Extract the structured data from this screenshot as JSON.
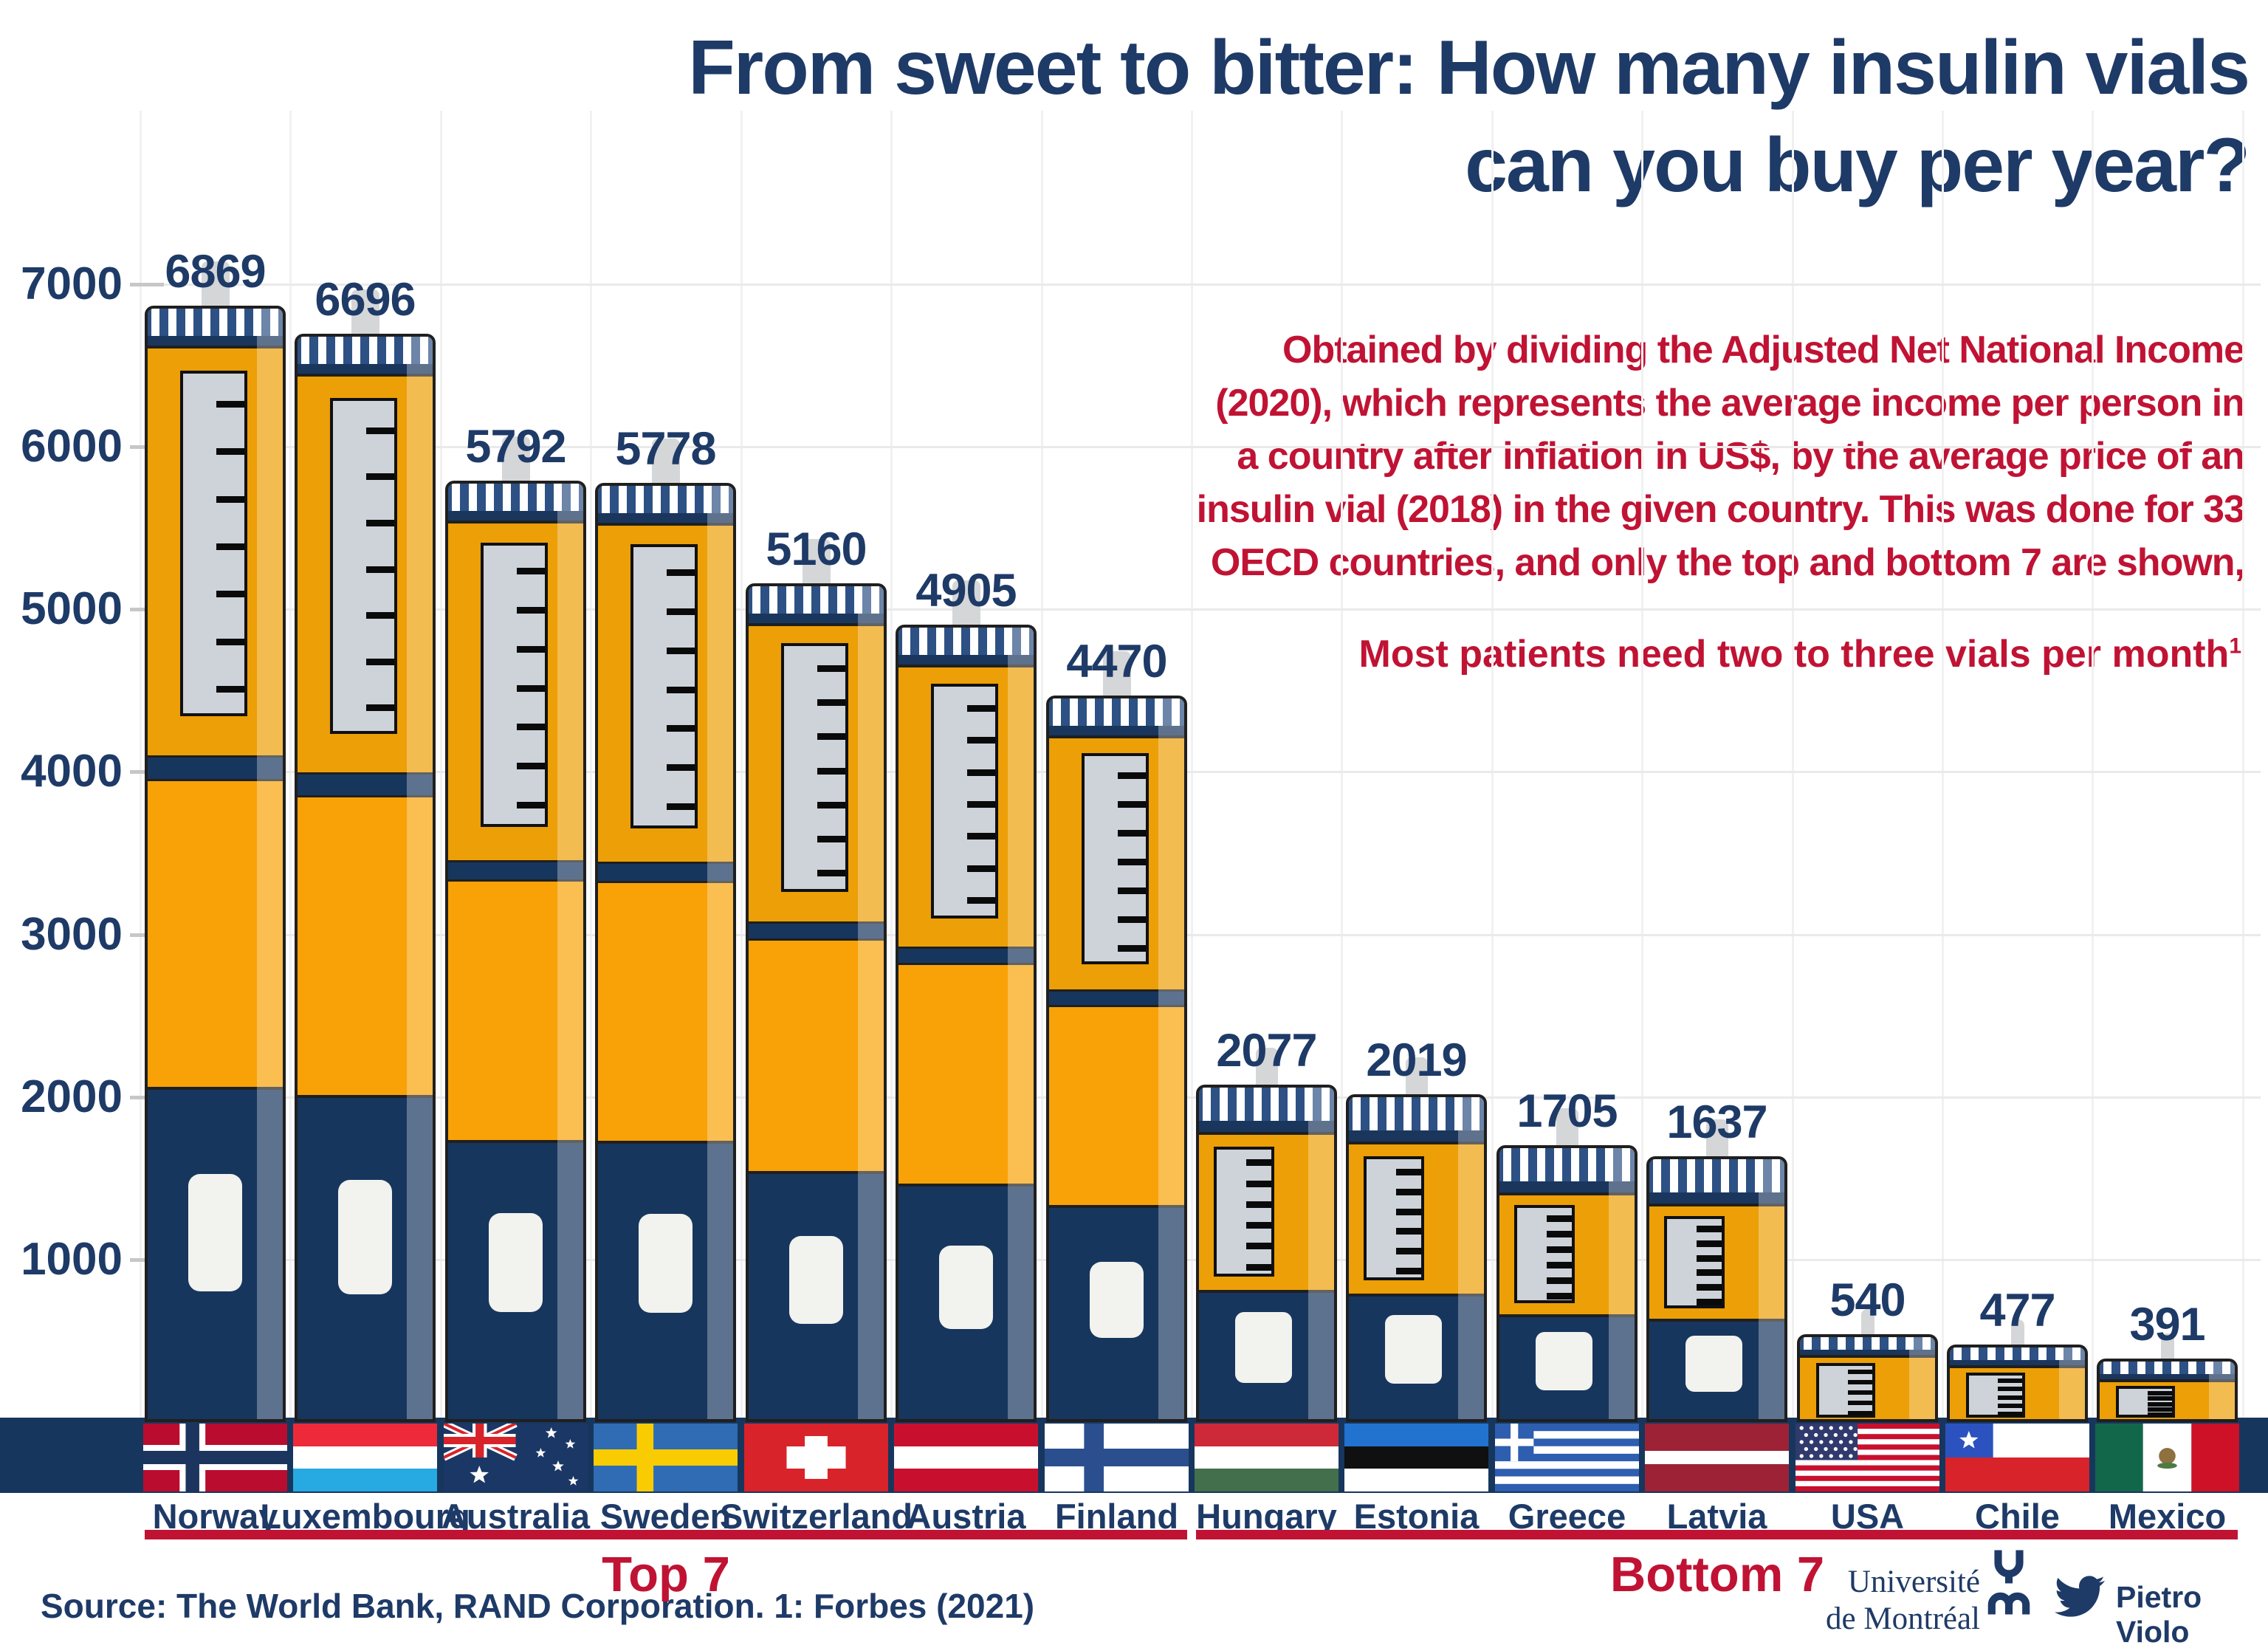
{
  "title": {
    "line1": "From sweet to bitter: How many insulin vials",
    "line2": "can you buy per year?"
  },
  "description": {
    "lines": [
      "Obtained by dividing the Adjusted Net National Income",
      "(2020), which represents the average income per person in",
      "a country after inflation in US$, by the average price of an",
      "insulin vial (2018) in the given country. This was done for 33",
      "OECD countries, and only the top and bottom 7 are shown,"
    ],
    "note": "Most patients need two to three vials per month",
    "note_superscript": "1"
  },
  "y_axis": {
    "tick_labels": [
      "7000",
      "6000",
      "5000",
      "4000",
      "3000",
      "2000",
      "1000"
    ],
    "tick_values": [
      7000,
      6000,
      5000,
      4000,
      3000,
      2000,
      1000
    ],
    "max": 7000
  },
  "chart_data": {
    "type": "bar",
    "title": "From sweet to bitter: How many insulin vials can you buy per year?",
    "categories": [
      "Norway",
      "Luxembourg",
      "Australia",
      "Sweden",
      "Switzerland",
      "Austria",
      "Finland",
      "Hungary",
      "Estonia",
      "Greece",
      "Latvia",
      "USA",
      "Chile",
      "Mexico"
    ],
    "values": [
      6869,
      6696,
      5792,
      5778,
      5160,
      4905,
      4470,
      2077,
      2019,
      1705,
      1637,
      540,
      477,
      391
    ],
    "xlabel": "",
    "ylabel": "",
    "ylim": [
      0,
      7000
    ],
    "yticks": [
      1000,
      2000,
      3000,
      4000,
      5000,
      6000,
      7000
    ],
    "grid": "on",
    "bar_style": "insulin-pen pictogram"
  },
  "countries": [
    {
      "name": "Norway",
      "value": "6869",
      "flag": "norway"
    },
    {
      "name": "Luxembourg",
      "value": "6696",
      "flag": "luxembourg"
    },
    {
      "name": "Australia",
      "value": "5792",
      "flag": "australia"
    },
    {
      "name": "Sweden",
      "value": "5778",
      "flag": "sweden"
    },
    {
      "name": "Switzerland",
      "value": "5160",
      "flag": "switzerland"
    },
    {
      "name": "Austria",
      "value": "4905",
      "flag": "austria"
    },
    {
      "name": "Finland",
      "value": "4470",
      "flag": "finland"
    },
    {
      "name": "Hungary",
      "value": "2077",
      "flag": "hungary"
    },
    {
      "name": "Estonia",
      "value": "2019",
      "flag": "estonia"
    },
    {
      "name": "Greece",
      "value": "1705",
      "flag": "greece"
    },
    {
      "name": "Latvia",
      "value": "1637",
      "flag": "latvia"
    },
    {
      "name": "USA",
      "value": "540",
      "flag": "usa"
    },
    {
      "name": "Chile",
      "value": "477",
      "flag": "chile"
    },
    {
      "name": "Mexico",
      "value": "391",
      "flag": "mexico"
    }
  ],
  "groups": [
    {
      "label": "Top 7",
      "first": 0,
      "last": 6
    },
    {
      "label": "Bottom 7",
      "first": 7,
      "last": 13
    }
  ],
  "source": "Source: The World Bank, RAND Corporation. 1: Forbes (2021)",
  "credits": {
    "university_line1": "Université",
    "university_line2": "de Montréal",
    "author": "Pietro Violo",
    "icons": [
      "universite-de-montreal-logo",
      "twitter-icon"
    ]
  },
  "colors": {
    "navy_text": "#1E3A67",
    "bar_navy": "#17365E",
    "cap_blue": "#2D5185",
    "cap_base": "#1A365C",
    "orange_upper": "#EC9F06",
    "orange_lower": "#F8A207",
    "red_accent": "#C01334",
    "ruler_gray": "#CDD3D9",
    "window_white": "#F2F2EE",
    "outline": "#1F1F1F"
  }
}
